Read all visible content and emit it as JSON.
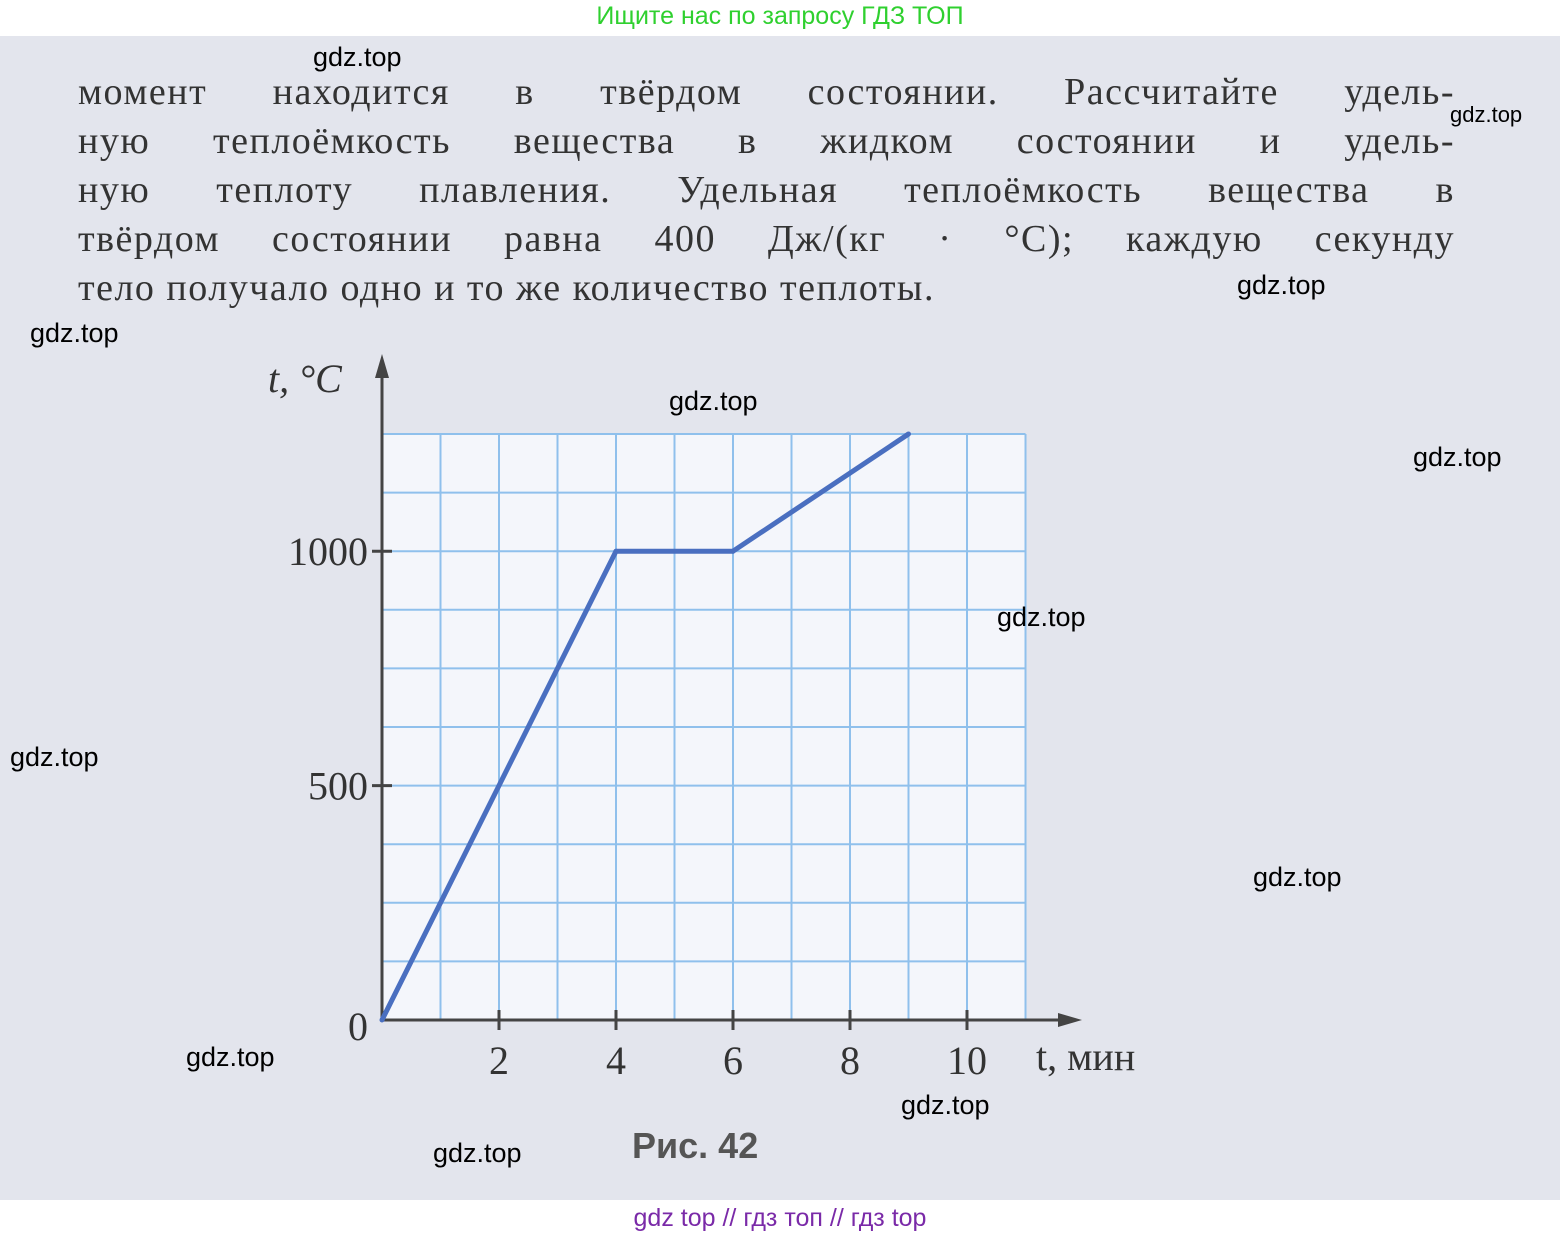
{
  "header": {
    "banner": "Ищите нас по запросу ГДЗ ТОП"
  },
  "footer": {
    "banner": "gdz top  //  гдз топ  //  гдз top"
  },
  "problem_text": [
    "момент находится в твёрдом состоянии. Рассчитайте удель-",
    "ную теплоёмкость вещества в жидком состоянии и удель-",
    "ную теплоту плавления. Удельная теплоёмкость вещества в",
    "твёрдом состоянии равна 400 Дж/(кг · °С); каждую секунду",
    "тело получало одно и то же количество теплоты."
  ],
  "watermark": "gdz.top",
  "colors": {
    "line": "#4a6fc0",
    "grid": "#8fc0ec",
    "axis": "#444444",
    "header": "#2fd02f",
    "footer": "#7a2aa8"
  },
  "chart_data": {
    "type": "line",
    "title": "",
    "caption": "Рис. 42",
    "xlabel": "t, мин",
    "ylabel": "t, °C",
    "x_ticks": [
      "2",
      "4",
      "6",
      "8",
      "10"
    ],
    "y_ticks": [
      "0",
      "500",
      "1000"
    ],
    "xlim": [
      0,
      11
    ],
    "ylim": [
      0,
      1250
    ],
    "grid": true,
    "grid_step": {
      "x": 1,
      "y": 125
    },
    "series": [
      {
        "x": [
          0,
          4,
          6,
          9
        ],
        "y": [
          0,
          1000,
          1000,
          1250
        ]
      }
    ]
  }
}
